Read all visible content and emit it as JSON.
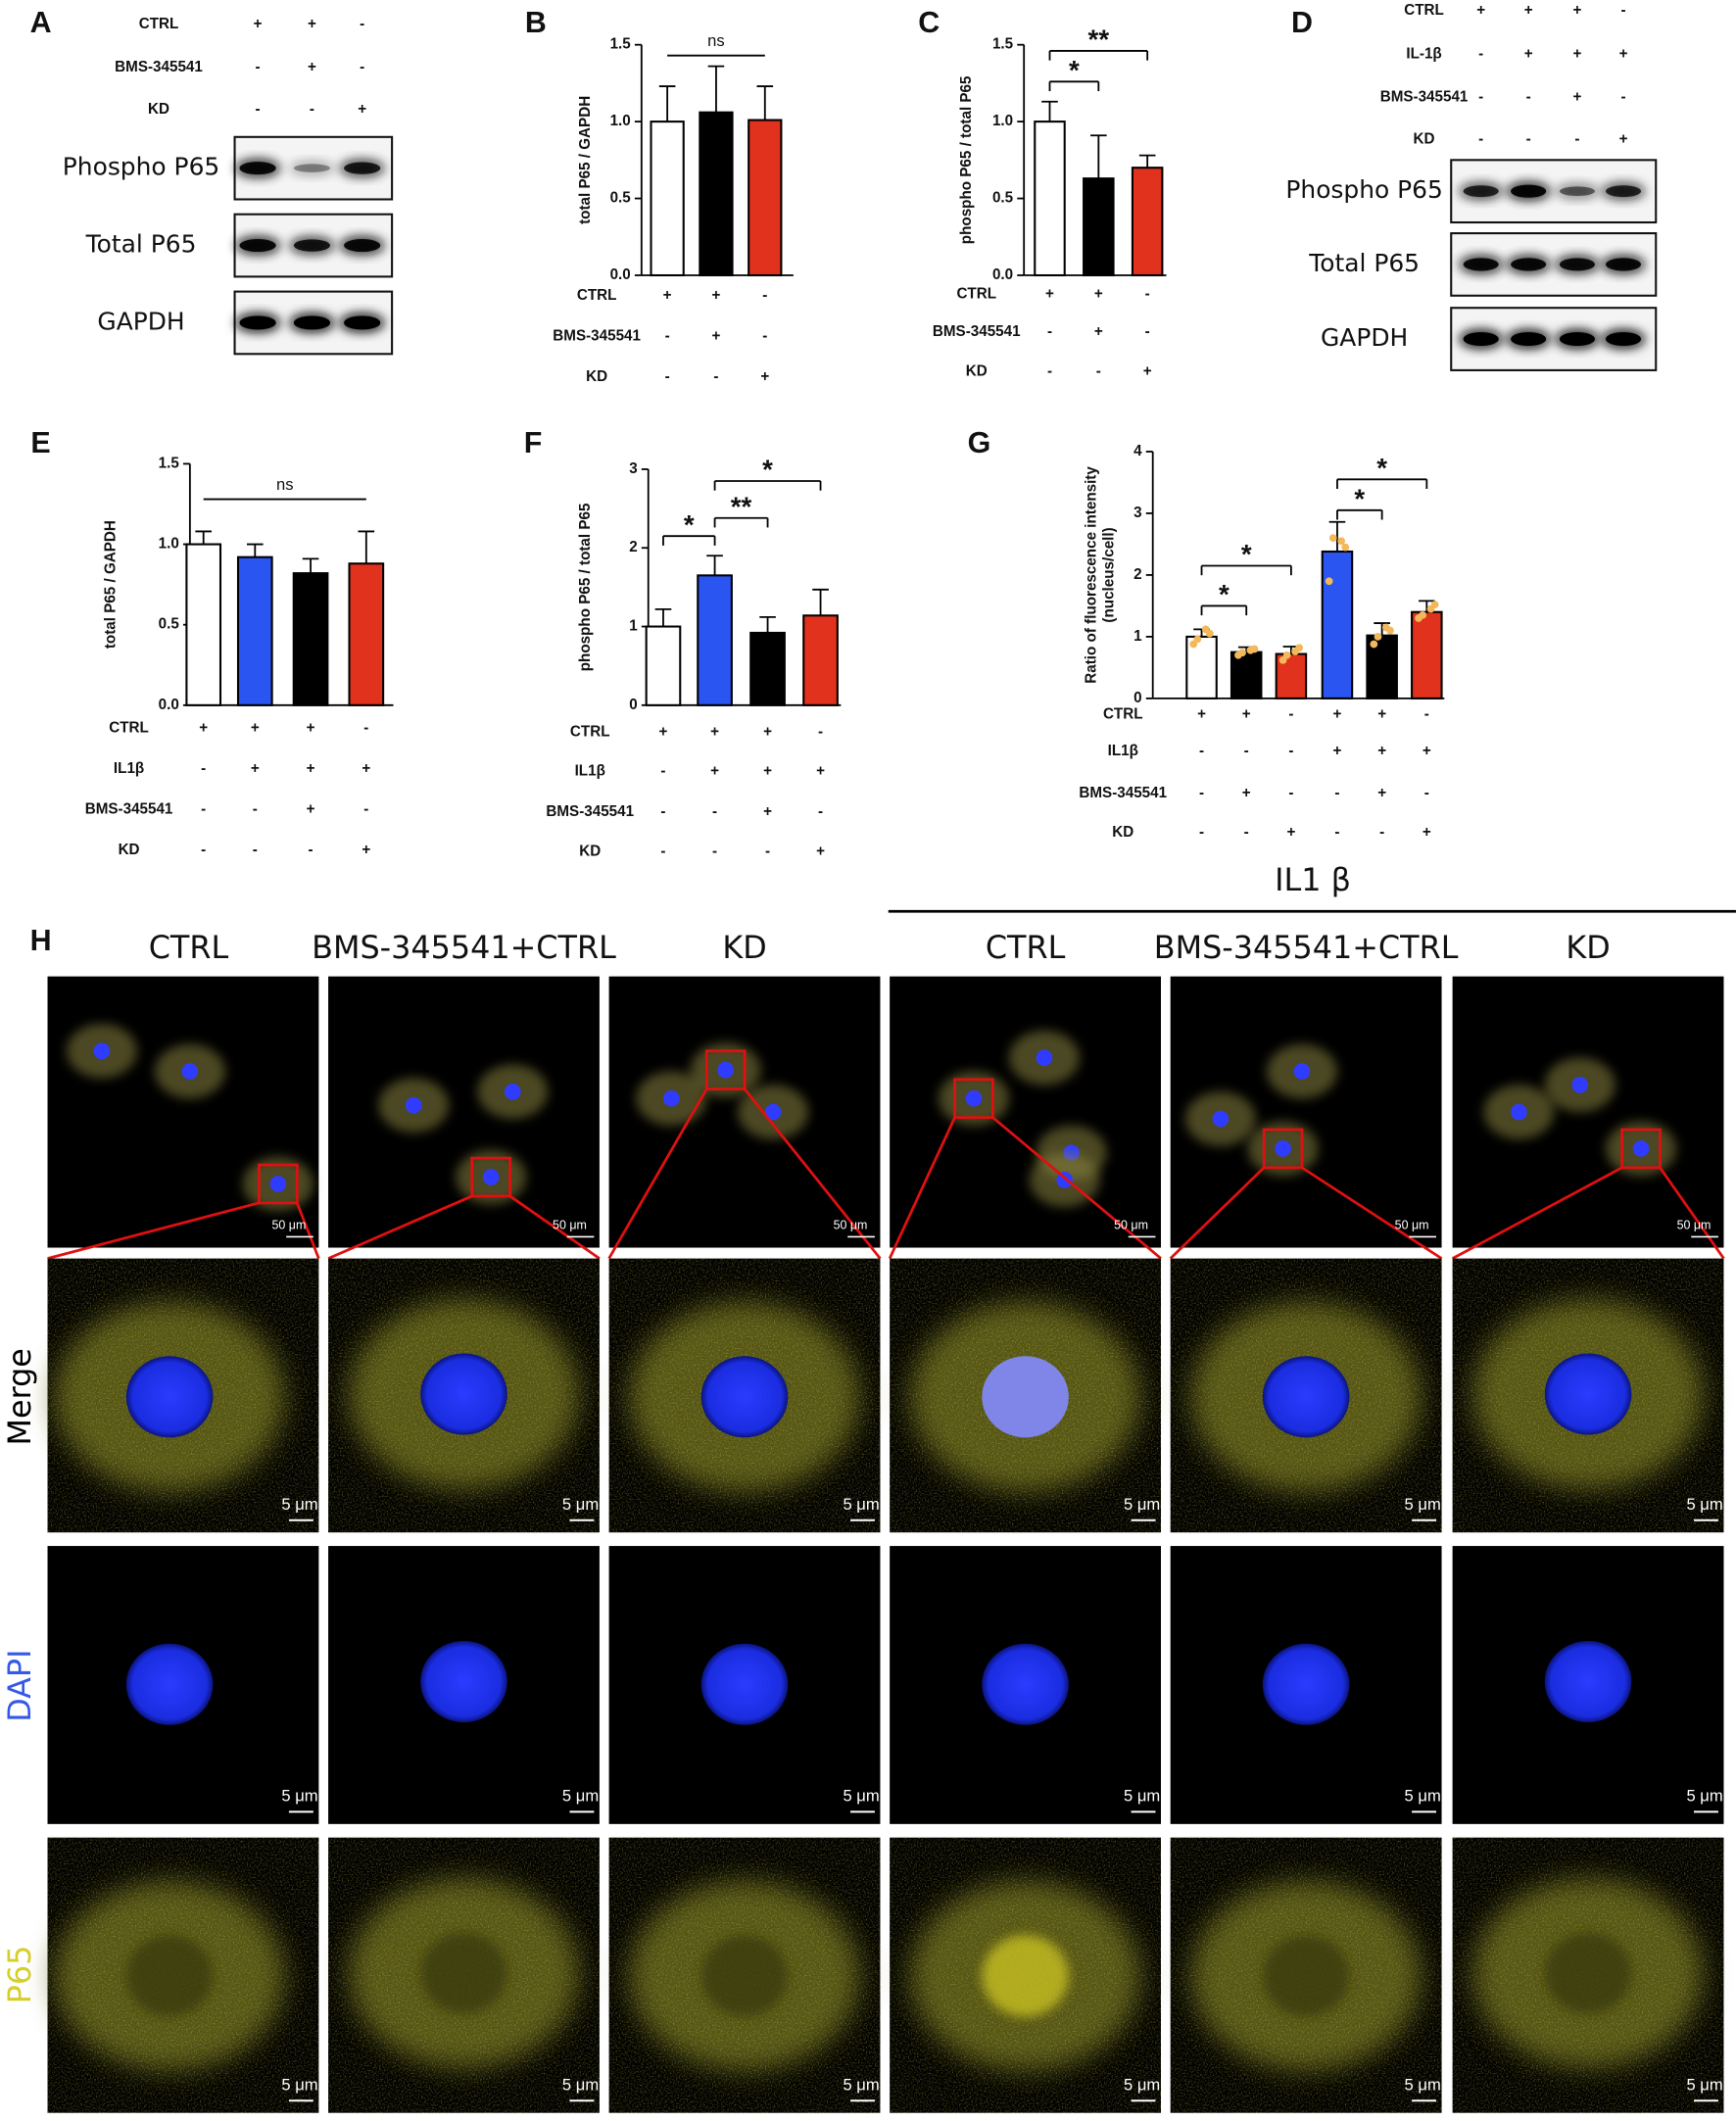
{
  "panel_labels": [
    "A",
    "B",
    "C",
    "D",
    "E",
    "F",
    "G",
    "H"
  ],
  "blots": [
    {
      "conditions": [
        {
          "name": "CTRL",
          "signs": [
            "+",
            "+",
            "-"
          ]
        },
        {
          "name": "BMS-345541",
          "signs": [
            "-",
            "+",
            "-"
          ]
        },
        {
          "name": "KD",
          "signs": [
            "-",
            "-",
            "+"
          ]
        }
      ],
      "bands": [
        "Phospho P65",
        "Total P65",
        "GAPDH"
      ]
    },
    {
      "conditions": [
        {
          "name": "CTRL",
          "signs": [
            "+",
            "+",
            "+",
            "-"
          ]
        },
        {
          "name": "IL-1β",
          "signs": [
            "-",
            "+",
            "+",
            "+"
          ]
        },
        {
          "name": "BMS-345541",
          "signs": [
            "-",
            "-",
            "+",
            "-"
          ]
        },
        {
          "name": "KD",
          "signs": [
            "-",
            "-",
            "-",
            "+"
          ]
        }
      ],
      "bands": [
        "Phospho P65",
        "Total P65",
        "GAPDH"
      ]
    }
  ],
  "chart_data": [
    {
      "type": "bar",
      "ylabel": [
        "total P65 / GAPDH"
      ],
      "values": [
        1.0,
        1.06,
        1.01
      ],
      "errors": [
        0.23,
        0.3,
        0.22
      ],
      "colors": [
        "#ffffff",
        "#000000",
        "#e0321c"
      ],
      "ylim": [
        0,
        1.5
      ],
      "yticks": [
        {
          "value": 0,
          "label": "0.0"
        },
        0.5,
        {
          "value": 1,
          "label": "1.0"
        },
        1.5
      ],
      "annotations": [
        "ns"
      ],
      "conditions": [
        {
          "name": "CTRL",
          "signs": [
            "+",
            "+",
            "-"
          ]
        },
        {
          "name": "BMS-345541",
          "signs": [
            "-",
            "+",
            "-"
          ]
        },
        {
          "name": "KD",
          "signs": [
            "-",
            "-",
            "+"
          ]
        }
      ]
    },
    {
      "type": "bar",
      "ylabel": [
        "phospho P65 / total P65"
      ],
      "values": [
        1.0,
        0.63,
        0.7
      ],
      "errors": [
        0.13,
        0.28,
        0.08
      ],
      "colors": [
        "#ffffff",
        "#000000",
        "#e0321c"
      ],
      "ylim": [
        0,
        1.5
      ],
      "yticks": [
        {
          "value": 0,
          "label": "0.0"
        },
        0.5,
        {
          "value": 1,
          "label": "1.0"
        },
        1.5
      ],
      "annotations": [
        "*",
        "**"
      ],
      "conditions": [
        {
          "name": "CTRL",
          "signs": [
            "+",
            "+",
            "-"
          ]
        },
        {
          "name": "BMS-345541",
          "signs": [
            "-",
            "+",
            "-"
          ]
        },
        {
          "name": "KD",
          "signs": [
            "-",
            "-",
            "+"
          ]
        }
      ]
    },
    {
      "type": "bar",
      "ylabel": [
        "total P65 / GAPDH"
      ],
      "values": [
        1.0,
        0.92,
        0.82,
        0.88
      ],
      "errors": [
        0.08,
        0.08,
        0.09,
        0.2
      ],
      "colors": [
        "#ffffff",
        "#2a55f0",
        "#000000",
        "#e0321c"
      ],
      "ylim": [
        0,
        1.5
      ],
      "yticks": [
        {
          "value": 0,
          "label": "0.0"
        },
        0.5,
        {
          "value": 1,
          "label": "1.0"
        },
        1.5
      ],
      "annotations": [
        "ns"
      ],
      "conditions": [
        {
          "name": "CTRL",
          "signs": [
            "+",
            "+",
            "+",
            "-"
          ]
        },
        {
          "name": "IL1β",
          "signs": [
            "-",
            "+",
            "+",
            "+"
          ]
        },
        {
          "name": "BMS-345541",
          "signs": [
            "-",
            "-",
            "+",
            "-"
          ]
        },
        {
          "name": "KD",
          "signs": [
            "-",
            "-",
            "-",
            "+"
          ]
        }
      ]
    },
    {
      "type": "bar",
      "ylabel": [
        "phospho P65 / total P65"
      ],
      "values": [
        1.0,
        1.65,
        0.92,
        1.14
      ],
      "errors": [
        0.22,
        0.25,
        0.2,
        0.33
      ],
      "colors": [
        "#ffffff",
        "#2a55f0",
        "#000000",
        "#e0321c"
      ],
      "ylim": [
        0,
        3
      ],
      "yticks": [
        0,
        1,
        2,
        3
      ],
      "annotations": [
        "*",
        "**",
        "*"
      ],
      "conditions": [
        {
          "name": "CTRL",
          "signs": [
            "+",
            "+",
            "+",
            "-"
          ]
        },
        {
          "name": "IL1β",
          "signs": [
            "-",
            "+",
            "+",
            "+"
          ]
        },
        {
          "name": "BMS-345541",
          "signs": [
            "-",
            "-",
            "+",
            "-"
          ]
        },
        {
          "name": "KD",
          "signs": [
            "-",
            "-",
            "-",
            "+"
          ]
        }
      ]
    },
    {
      "type": "bar",
      "ylabel": [
        "Ratio of fluorescence intensity",
        "(nucleus/cell)"
      ],
      "values": [
        1.0,
        0.75,
        0.72,
        2.38,
        1.02,
        1.4
      ],
      "errors": [
        0.12,
        0.08,
        0.12,
        0.48,
        0.2,
        0.18
      ],
      "colors": [
        "#ffffff",
        "#000000",
        "#e0321c",
        "#2a55f0",
        "#000000",
        "#e0321c"
      ],
      "points": [
        [
          0.88,
          1.05,
          0.96,
          1.12
        ],
        [
          0.7,
          0.8,
          0.74,
          0.78
        ],
        [
          0.62,
          0.82,
          0.7,
          0.76
        ],
        [
          1.9,
          2.45,
          2.6,
          2.55
        ],
        [
          0.88,
          1.1,
          1.0,
          1.15
        ],
        [
          1.3,
          1.52,
          1.35,
          1.45
        ]
      ],
      "point_color": "#f2b85a",
      "ylim": [
        0,
        4
      ],
      "yticks": [
        0,
        1,
        2,
        3,
        4
      ],
      "annotations": [
        "*",
        "*",
        "*",
        "*"
      ],
      "conditions": [
        {
          "name": "CTRL",
          "signs": [
            "+",
            "+",
            "-",
            "+",
            "+",
            "-"
          ]
        },
        {
          "name": "IL1β",
          "signs": [
            "-",
            "-",
            "-",
            "+",
            "+",
            "+"
          ]
        },
        {
          "name": "BMS-345541",
          "signs": [
            "-",
            "+",
            "-",
            "-",
            "+",
            "-"
          ]
        },
        {
          "name": "KD",
          "signs": [
            "-",
            "-",
            "+",
            "-",
            "-",
            "+"
          ]
        }
      ]
    }
  ],
  "microscopy": {
    "group_title": "IL1 β",
    "columns": [
      "CTRL",
      "BMS-345541+CTRL",
      "KD",
      "CTRL",
      "BMS-345541+CTRL",
      "KD"
    ],
    "rows": [
      {
        "label": "Merge",
        "color": "#000000"
      },
      {
        "label": "DAPI",
        "color": "#3558e8"
      },
      {
        "label": "P65",
        "color": "#d6cf2a"
      }
    ],
    "scale_overview": "50 μm",
    "scale_detail": "5 μm"
  }
}
